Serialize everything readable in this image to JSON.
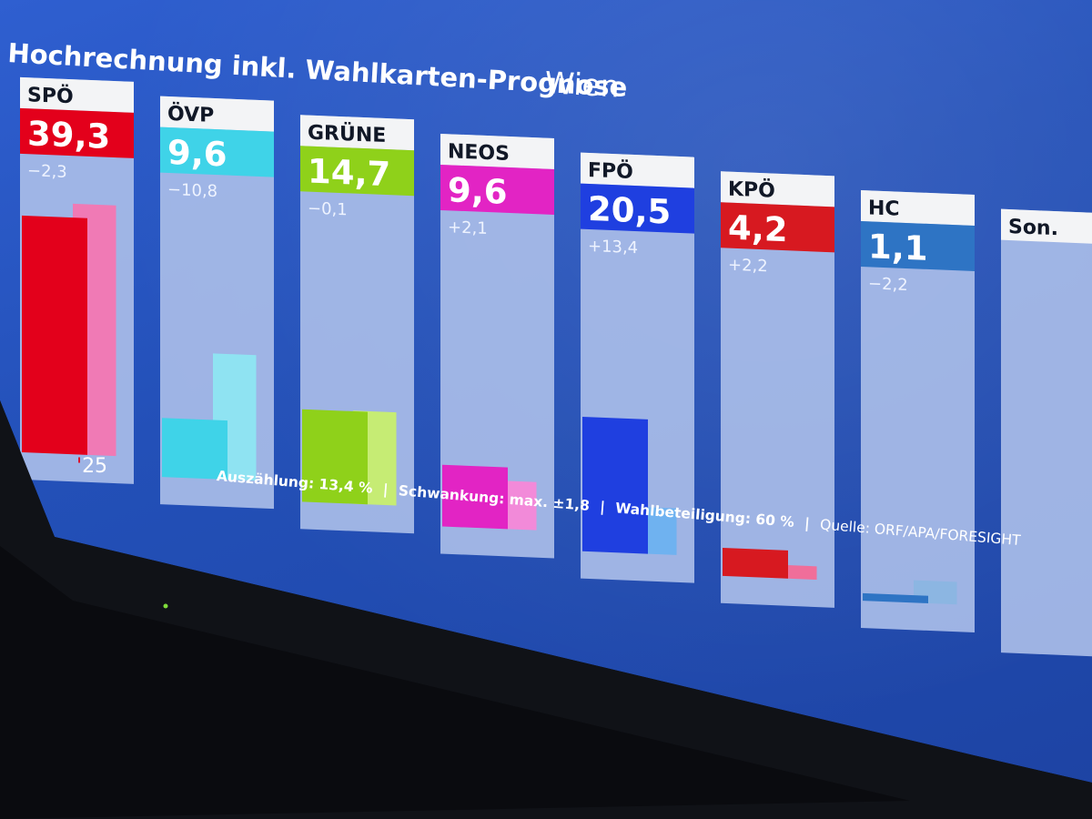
{
  "header": {
    "title": "Hochrechnung inkl. Wahlkarten-Prognose",
    "region": "Wien"
  },
  "logo": {
    "text": "25",
    "accent": "#e3001b"
  },
  "footer": {
    "count": "Auszählung: 13,4 %",
    "fluctuation": "Schwankung: max. ±1,8",
    "turnout": "Wahlbeteiligung: 60 %",
    "source": "Quelle: ORF/APA/FORESIGHT",
    "separator": "|"
  },
  "chart_data": {
    "type": "bar",
    "categories": [
      "SPÖ",
      "ÖVP",
      "GRÜNE",
      "NEOS",
      "FPÖ",
      "KPÖ",
      "HC",
      "Son."
    ],
    "series": [
      {
        "values": [
          39.3,
          9.6,
          14.7,
          9.6,
          20.5,
          4.2,
          1.1,
          null
        ]
      },
      {
        "values": [
          41.6,
          20.4,
          14.8,
          7.5,
          7.1,
          2.0,
          3.3,
          null
        ]
      }
    ],
    "value_labels": [
      "39,3",
      "9,6",
      "14,7",
      "9,6",
      "20,5",
      "4,2",
      "1,1",
      ""
    ],
    "change_labels": [
      "−2,3",
      "−10,8",
      "−0,1",
      "+2,1",
      "+13,4",
      "+2,2",
      "−2,2",
      ""
    ],
    "colors": [
      "#e3001b",
      "#3fd3e8",
      "#8fd11a",
      "#e224c4",
      "#1f3fe0",
      "#d71920",
      "#2e74c4",
      "#c9ced8"
    ],
    "previous_colors": [
      "#f07ab5",
      "#8fe3f2",
      "#c6ec74",
      "#f28ad9",
      "#6fb2f0",
      "#f06e9a",
      "#8cb6e2",
      "#dcdfe6"
    ],
    "ylim": [
      0,
      45
    ],
    "grid": false,
    "legend": "none"
  }
}
